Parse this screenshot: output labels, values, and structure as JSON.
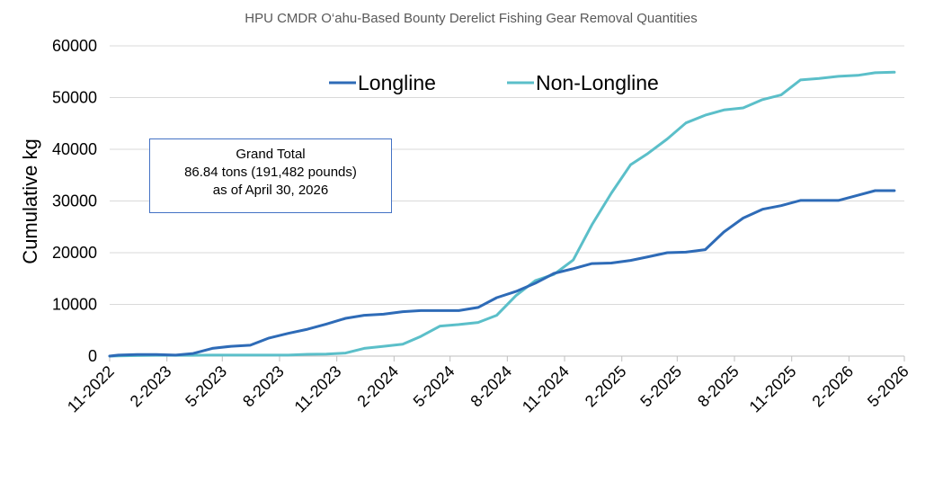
{
  "chart_data": {
    "type": "line",
    "title": "HPU CMDR O‘ahu-Based Bounty Derelict Fishing Gear Removal Quantities",
    "ylabel": "Cumulative kg",
    "xlabel": "",
    "ylim": [
      0,
      60000
    ],
    "yticks": [
      0,
      10000,
      20000,
      30000,
      40000,
      50000,
      60000
    ],
    "ytick_labels": [
      "0",
      "10000",
      "20000",
      "30000",
      "40000",
      "50000",
      "60000"
    ],
    "xticks": [
      "11-2022",
      "2-2023",
      "5-2023",
      "8-2023",
      "11-2023",
      "2-2024",
      "5-2024",
      "8-2024",
      "11-2024",
      "2-2025",
      "5-2025",
      "8-2025",
      "11-2025",
      "2-2026",
      "5-2026"
    ],
    "xlim": [
      "2022-11-01",
      "2026-05-01"
    ],
    "grid": true,
    "legend_position": "top-center",
    "series": [
      {
        "name": "Longline",
        "color": "#2e6bb7",
        "points": [
          [
            "2022-11-01",
            0
          ],
          [
            "2022-11-15",
            200
          ],
          [
            "2022-12-15",
            300
          ],
          [
            "2023-01-15",
            300
          ],
          [
            "2023-02-15",
            200
          ],
          [
            "2023-03-15",
            500
          ],
          [
            "2023-04-15",
            1500
          ],
          [
            "2023-05-15",
            1900
          ],
          [
            "2023-06-15",
            2100
          ],
          [
            "2023-07-15",
            3500
          ],
          [
            "2023-08-15",
            4400
          ],
          [
            "2023-09-15",
            5200
          ],
          [
            "2023-10-15",
            6200
          ],
          [
            "2023-11-15",
            7300
          ],
          [
            "2023-12-15",
            7900
          ],
          [
            "2024-01-15",
            8100
          ],
          [
            "2024-02-15",
            8600
          ],
          [
            "2024-03-15",
            8800
          ],
          [
            "2024-04-15",
            8800
          ],
          [
            "2024-05-15",
            8800
          ],
          [
            "2024-06-15",
            9400
          ],
          [
            "2024-07-15",
            11300
          ],
          [
            "2024-08-15",
            12500
          ],
          [
            "2024-09-15",
            14100
          ],
          [
            "2024-10-15",
            16000
          ],
          [
            "2024-11-15",
            16900
          ],
          [
            "2024-12-15",
            17900
          ],
          [
            "2025-01-15",
            18000
          ],
          [
            "2025-02-15",
            18500
          ],
          [
            "2025-03-15",
            19200
          ],
          [
            "2025-04-15",
            20000
          ],
          [
            "2025-05-15",
            20100
          ],
          [
            "2025-06-15",
            20600
          ],
          [
            "2025-07-15",
            24000
          ],
          [
            "2025-08-15",
            26700
          ],
          [
            "2025-09-15",
            28400
          ],
          [
            "2025-10-15",
            29100
          ],
          [
            "2025-11-15",
            30100
          ],
          [
            "2025-12-15",
            30100
          ],
          [
            "2026-01-15",
            30100
          ],
          [
            "2026-02-15",
            31100
          ],
          [
            "2026-03-15",
            32000
          ],
          [
            "2026-04-15",
            32000
          ]
        ]
      },
      {
        "name": "Non-Longline",
        "color": "#5bbfc9",
        "points": [
          [
            "2022-11-01",
            0
          ],
          [
            "2022-11-15",
            50
          ],
          [
            "2022-12-15",
            100
          ],
          [
            "2023-01-15",
            150
          ],
          [
            "2023-02-15",
            150
          ],
          [
            "2023-03-15",
            150
          ],
          [
            "2023-04-15",
            200
          ],
          [
            "2023-05-15",
            200
          ],
          [
            "2023-06-15",
            200
          ],
          [
            "2023-07-15",
            200
          ],
          [
            "2023-08-15",
            200
          ],
          [
            "2023-09-15",
            350
          ],
          [
            "2023-10-15",
            400
          ],
          [
            "2023-11-15",
            600
          ],
          [
            "2023-12-15",
            1500
          ],
          [
            "2024-01-15",
            1900
          ],
          [
            "2024-02-15",
            2300
          ],
          [
            "2024-03-15",
            3800
          ],
          [
            "2024-04-15",
            5800
          ],
          [
            "2024-05-15",
            6100
          ],
          [
            "2024-06-15",
            6500
          ],
          [
            "2024-07-15",
            7900
          ],
          [
            "2024-08-15",
            11700
          ],
          [
            "2024-09-15",
            14600
          ],
          [
            "2024-10-15",
            15800
          ],
          [
            "2024-11-15",
            18600
          ],
          [
            "2024-12-15",
            25400
          ],
          [
            "2025-01-15",
            31500
          ],
          [
            "2025-02-15",
            37000
          ],
          [
            "2025-03-15",
            39200
          ],
          [
            "2025-04-15",
            42000
          ],
          [
            "2025-05-15",
            45100
          ],
          [
            "2025-06-15",
            46600
          ],
          [
            "2025-07-15",
            47600
          ],
          [
            "2025-08-15",
            48000
          ],
          [
            "2025-09-15",
            49600
          ],
          [
            "2025-10-15",
            50500
          ],
          [
            "2025-11-15",
            53400
          ],
          [
            "2025-12-15",
            53700
          ],
          [
            "2026-01-15",
            54100
          ],
          [
            "2026-02-15",
            54300
          ],
          [
            "2026-03-15",
            54800
          ],
          [
            "2026-04-15",
            54900
          ]
        ]
      }
    ],
    "annotation": {
      "lines": [
        "Grand Total",
        "86.84 tons (191,482 pounds)",
        "as of April 30, 2026"
      ]
    }
  }
}
